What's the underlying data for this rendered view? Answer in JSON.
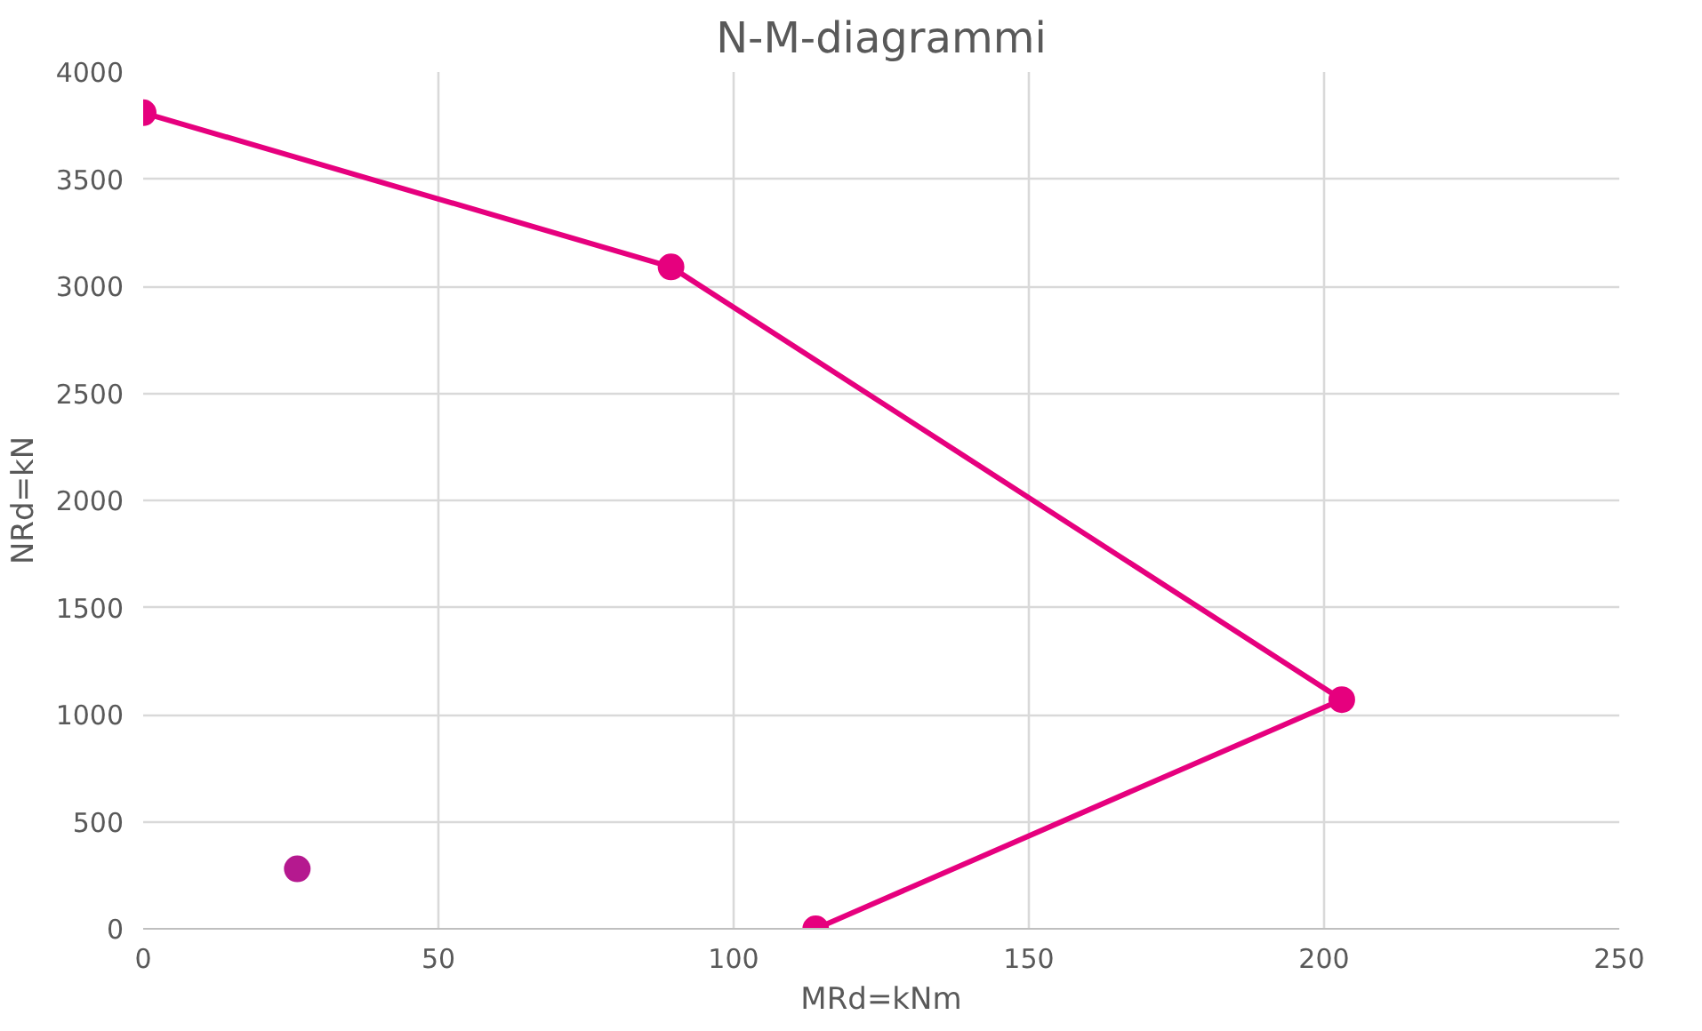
{
  "chart_data": {
    "type": "line",
    "title": "N-M-diagrammi",
    "xlabel": "MRd=kNm",
    "ylabel": "NRd=kN",
    "xlim": [
      0,
      250
    ],
    "xticks": [
      0,
      50,
      100,
      150,
      200,
      250
    ],
    "ylim": [
      0,
      4000
    ],
    "yticks": [
      0,
      500,
      1000,
      1500,
      2000,
      2500,
      3000,
      3500,
      4000
    ],
    "grid": true,
    "marker": "circle",
    "series": [
      {
        "color": "#e6007e",
        "x": [
          0,
          89.4,
          203,
          113.9
        ],
        "values": [
          3810,
          3090,
          1070,
          0
        ]
      },
      {
        "type": "scatter",
        "color": "#b5198f",
        "x": [
          26.1
        ],
        "values": [
          280
        ]
      }
    ]
  }
}
